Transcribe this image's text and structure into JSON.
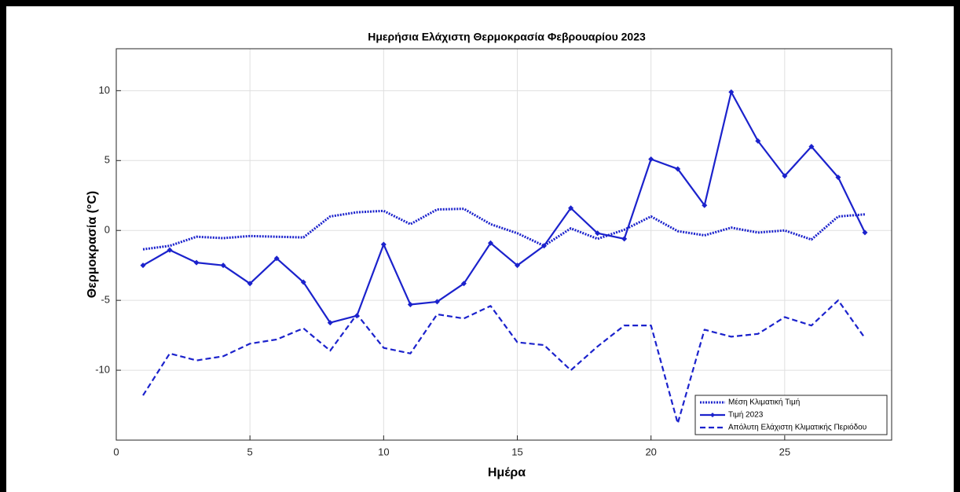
{
  "chart_data": {
    "type": "line",
    "title": "Ημερήσια Ελάχιστη Θερμοκρασία Φεβρουαρίου 2023",
    "xlabel": "Ημέρα",
    "ylabel": "Θερμοκρασία (°C)",
    "x": [
      1,
      2,
      3,
      4,
      5,
      6,
      7,
      8,
      9,
      10,
      11,
      12,
      13,
      14,
      15,
      16,
      17,
      18,
      19,
      20,
      21,
      22,
      23,
      24,
      25,
      26,
      27,
      28
    ],
    "xlim": [
      0,
      29
    ],
    "xticks": [
      0,
      5,
      10,
      15,
      20,
      25
    ],
    "ylim": [
      -15,
      13
    ],
    "yticks": [
      -10,
      -5,
      0,
      5,
      10
    ],
    "grid": true,
    "legend": "lower right",
    "series": [
      {
        "name": "Μέση Κλιματική Τιμή",
        "color": "#1b22cc",
        "style": "dotted",
        "values": [
          -1.35,
          -1.1,
          -0.45,
          -0.55,
          -0.4,
          -0.45,
          -0.5,
          1.0,
          1.3,
          1.4,
          0.45,
          1.5,
          1.55,
          0.45,
          -0.2,
          -1.1,
          0.15,
          -0.6,
          0.05,
          1.0,
          -0.05,
          -0.35,
          0.2,
          -0.15,
          0.0,
          -0.65,
          1.0,
          1.15
        ]
      },
      {
        "name": "Τιμή 2023",
        "color": "#1b22cc",
        "style": "solid",
        "marker": "diamond",
        "values": [
          -2.5,
          -1.4,
          -2.3,
          -2.5,
          -3.8,
          -2.0,
          -3.7,
          -6.6,
          -6.1,
          -1.0,
          -5.3,
          -5.1,
          -3.8,
          -0.9,
          -2.5,
          -1.1,
          1.6,
          -0.2,
          -0.6,
          5.1,
          4.4,
          1.8,
          9.9,
          6.4,
          3.9,
          6.0,
          3.8,
          -0.15
        ]
      },
      {
        "name": "Απόλυτη Ελάχιστη Κλιματικής Περιόδου",
        "color": "#1b22cc",
        "style": "dashed",
        "values": [
          -11.8,
          -8.8,
          -9.3,
          -9.0,
          -8.1,
          -7.8,
          -7.0,
          -8.6,
          -6.0,
          -8.4,
          -8.8,
          -6.0,
          -6.3,
          -5.4,
          -8.0,
          -8.2,
          -10.0,
          -8.3,
          -6.8,
          -6.8,
          -13.8,
          -7.1,
          -7.6,
          -7.4,
          -6.2,
          -6.8,
          -5.0,
          -7.7
        ]
      }
    ]
  }
}
